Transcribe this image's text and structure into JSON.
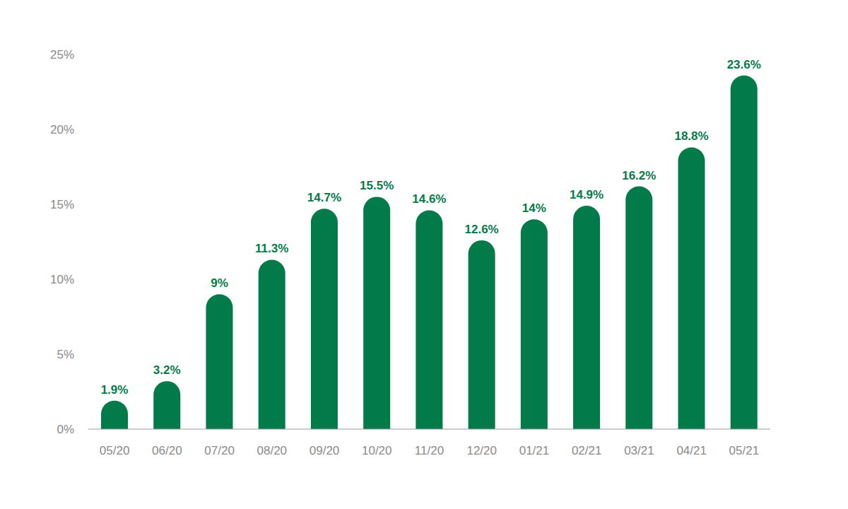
{
  "chart_data": {
    "type": "bar",
    "categories": [
      "05/20",
      "06/20",
      "07/20",
      "08/20",
      "09/20",
      "10/20",
      "11/20",
      "12/20",
      "01/21",
      "02/21",
      "03/21",
      "04/21",
      "05/21"
    ],
    "values": [
      1.9,
      3.2,
      9,
      11.3,
      14.7,
      15.5,
      14.6,
      12.6,
      14,
      14.9,
      16.2,
      18.8,
      23.6
    ],
    "value_labels": [
      "1.9%",
      "3.2%",
      "9%",
      "11.3%",
      "14.7%",
      "15.5%",
      "14.6%",
      "12.6%",
      "14%",
      "14.9%",
      "16.2%",
      "18.8%",
      "23.6%"
    ],
    "color": "#037a49",
    "ylim": [
      0,
      25
    ],
    "yticks": [
      {
        "value": 0,
        "label": "0%"
      },
      {
        "value": 5,
        "label": "5%"
      },
      {
        "value": 10,
        "label": "10%"
      },
      {
        "value": 15,
        "label": "15%"
      },
      {
        "value": 20,
        "label": "20%"
      },
      {
        "value": 25,
        "label": "25%"
      }
    ],
    "data_labels": true,
    "grid": false
  }
}
